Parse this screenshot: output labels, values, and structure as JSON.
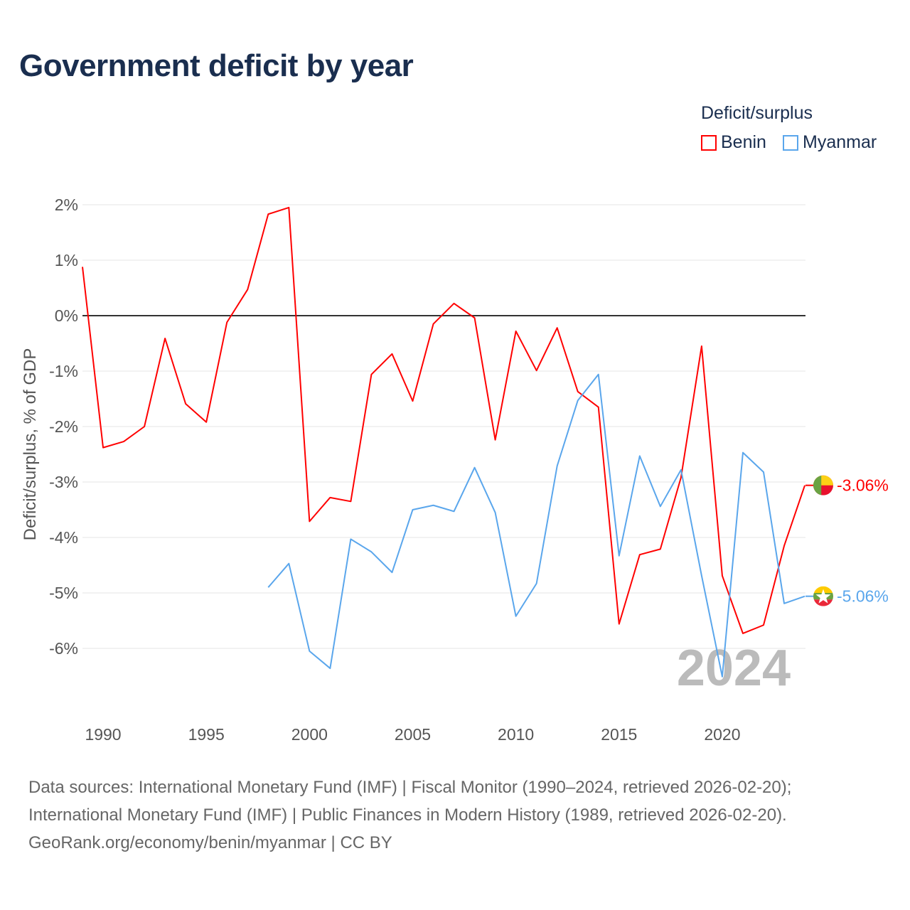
{
  "chart_data": {
    "type": "line",
    "title": "Government deficit by year",
    "ylabel": "Deficit/surplus, % of GDP",
    "xlabel": "",
    "ylim": [
      -7,
      2.2
    ],
    "xlim": [
      1989,
      2024
    ],
    "yticks": [
      2,
      1,
      0,
      -1,
      -2,
      -3,
      -4,
      -5,
      -6
    ],
    "ytick_labels": [
      "2%",
      "1%",
      "0%",
      "-1%",
      "-2%",
      "-3%",
      "-4%",
      "-5%",
      "-6%"
    ],
    "xticks": [
      1990,
      1995,
      2000,
      2005,
      2010,
      2015,
      2020
    ],
    "xtick_labels": [
      "1990",
      "1995",
      "2000",
      "2005",
      "2010",
      "2015",
      "2020"
    ],
    "grid": true,
    "legend_title": "Deficit/surplus",
    "legend_placement": "top-right",
    "year_watermark": "2024",
    "series": [
      {
        "name": "Benin",
        "color": "#ff0000",
        "end_label": "-3.06%",
        "x": [
          1989,
          1990,
          1991,
          1992,
          1993,
          1994,
          1995,
          1996,
          1997,
          1998,
          1999,
          2000,
          2001,
          2002,
          2003,
          2004,
          2005,
          2006,
          2007,
          2008,
          2009,
          2010,
          2011,
          2012,
          2013,
          2014,
          2015,
          2016,
          2017,
          2018,
          2019,
          2020,
          2021,
          2022,
          2023,
          2024
        ],
        "values": [
          0.88,
          -2.38,
          -2.27,
          -2.0,
          -0.41,
          -1.59,
          -1.92,
          -0.12,
          0.47,
          1.83,
          1.95,
          -3.71,
          -3.28,
          -3.35,
          -1.06,
          -0.69,
          -1.54,
          -0.15,
          0.22,
          -0.04,
          -2.24,
          -0.28,
          -0.99,
          -0.22,
          -1.37,
          -1.65,
          -5.56,
          -4.31,
          -4.21,
          -2.92,
          -0.55,
          -4.69,
          -5.73,
          -5.58,
          -4.15,
          -3.06
        ]
      },
      {
        "name": "Myanmar",
        "color": "#5aa6ec",
        "end_label": "-5.06%",
        "x": [
          1998,
          1999,
          2000,
          2001,
          2002,
          2003,
          2004,
          2005,
          2006,
          2007,
          2008,
          2009,
          2010,
          2011,
          2012,
          2013,
          2014,
          2015,
          2016,
          2017,
          2018,
          2019,
          2020,
          2021,
          2022,
          2023,
          2024
        ],
        "values": [
          -4.9,
          -4.47,
          -6.05,
          -6.36,
          -4.03,
          -4.26,
          -4.63,
          -3.5,
          -3.42,
          -3.53,
          -2.74,
          -3.55,
          -5.42,
          -4.83,
          -2.71,
          -1.53,
          -1.06,
          -4.33,
          -2.53,
          -3.44,
          -2.78,
          -4.69,
          -6.51,
          -2.47,
          -2.82,
          -5.19,
          -5.06
        ]
      }
    ]
  },
  "footer": {
    "line1": "Data sources: International Monetary Fund (IMF) | Fiscal Monitor (1990–2024, retrieved 2026-02-20);",
    "line2": "International Monetary Fund (IMF) | Public Finances in Modern History (1989, retrieved 2026-02-20).",
    "line3": "GeoRank.org/economy/benin/myanmar | CC BY"
  }
}
